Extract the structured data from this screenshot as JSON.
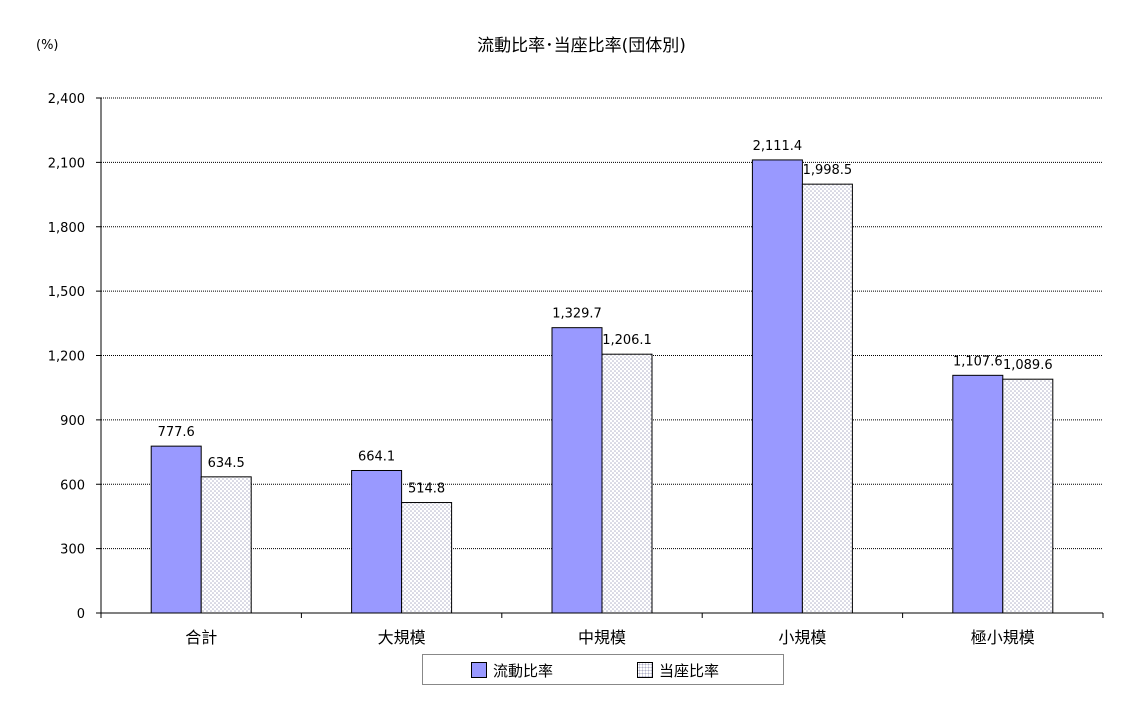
{
  "chart_data": {
    "type": "bar",
    "title": "流動比率･当座比率(団体別)",
    "unit": "(%)",
    "categories": [
      "合計",
      "大規模",
      "中規模",
      "小規模",
      "極小規模"
    ],
    "series": [
      {
        "name": "流動比率",
        "values": [
          777.6,
          664.1,
          1329.7,
          2111.4,
          1107.6
        ],
        "labels": [
          "777.6",
          "664.1",
          "1,329.7",
          "2,111.4",
          "1,107.6"
        ],
        "color": "#9999FF"
      },
      {
        "name": "当座比率",
        "values": [
          634.5,
          514.8,
          1206.1,
          1998.5,
          1089.6
        ],
        "labels": [
          "634.5",
          "514.8",
          "1,206.1",
          "1,998.5",
          "1,089.6"
        ],
        "color": "#E6E6F5"
      }
    ],
    "yticks": [
      "0",
      "300",
      "600",
      "900",
      "1,200",
      "1,500",
      "1,800",
      "2,100",
      "2,400"
    ],
    "ylim": [
      0,
      2400
    ],
    "grid": true,
    "legend_position": "bottom"
  }
}
